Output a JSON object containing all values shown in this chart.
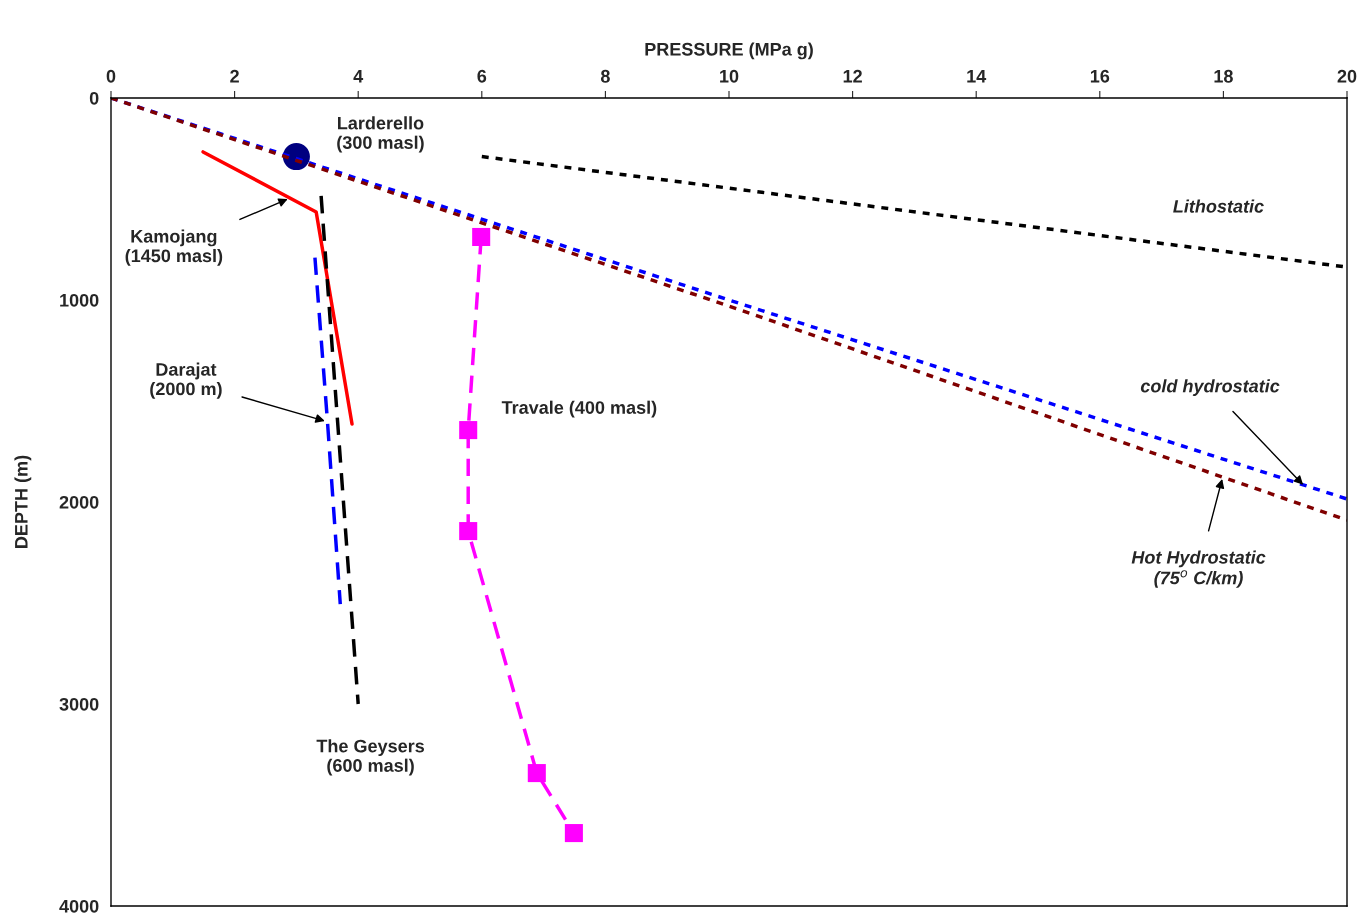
{
  "chart_data": {
    "type": "line",
    "xlabel": "PRESSURE (MPa g)",
    "ylabel": "DEPTH (m)",
    "xlim": [
      0,
      20
    ],
    "xticks": [
      0,
      2,
      4,
      6,
      8,
      10,
      12,
      14,
      16,
      18,
      20
    ],
    "ylim": [
      4000,
      0
    ],
    "yticks": [
      0,
      1000,
      2000,
      3000,
      4000
    ],
    "grid": false,
    "legend": false,
    "series": [
      {
        "type": "scatter",
        "color": "#000080",
        "marker": "circle",
        "x": [
          3.0
        ],
        "values": [
          290
        ]
      },
      {
        "color": "#ff0000",
        "line_style": "solid",
        "marker": "none",
        "x": [
          1.49,
          3.32,
          3.9
        ],
        "values": [
          267,
          564,
          1614
        ]
      },
      {
        "color": "#0000ff",
        "line_style": "dashed",
        "marker": "none",
        "x": [
          3.3,
          3.5,
          3.71
        ],
        "values": [
          790,
          1590,
          2505
        ]
      },
      {
        "color": "#000000",
        "line_style": "dashed",
        "marker": "none",
        "x": [
          3.4,
          4.0
        ],
        "values": [
          485,
          3000
        ]
      },
      {
        "color": "#ff00ff",
        "line_style": "dashed",
        "marker": "square",
        "x": [
          5.99,
          5.78,
          5.78,
          6.89,
          7.49
        ],
        "values": [
          688,
          1644,
          2144,
          3342,
          3639
        ]
      },
      {
        "color": "#000000",
        "line_style": "dotted",
        "marker": "none",
        "x": [
          6.0,
          20
        ],
        "values": [
          290,
          837
        ]
      },
      {
        "color": "#0000ff",
        "line_style": "dotted",
        "marker": "none",
        "x": [
          0,
          10,
          20
        ],
        "values": [
          0,
          1000,
          1985
        ]
      },
      {
        "color": "#800000",
        "line_style": "dotted",
        "marker": "none",
        "x": [
          0,
          10,
          20
        ],
        "values": [
          0,
          1030,
          2090
        ]
      }
    ],
    "annotations": [
      "Larderello\n(300 masl)",
      {
        "text": "Kamojang\n(1450 masl)",
        "x": 2.86,
        "y": 500
      },
      {
        "text": "Darajat\n(2000 m)",
        "x": 3.46,
        "y": 1599
      },
      "The Geysers\n(600 masl)",
      "Travale (400 masl)",
      "Lithostatic",
      {
        "text": "cold hydrostatic",
        "x": 19.29,
        "y": 1915
      },
      {
        "text": "Hot Hydrostatic\n(75$^{o}$ C/km)",
        "x": 17.98,
        "y": 1886
      }
    ]
  }
}
